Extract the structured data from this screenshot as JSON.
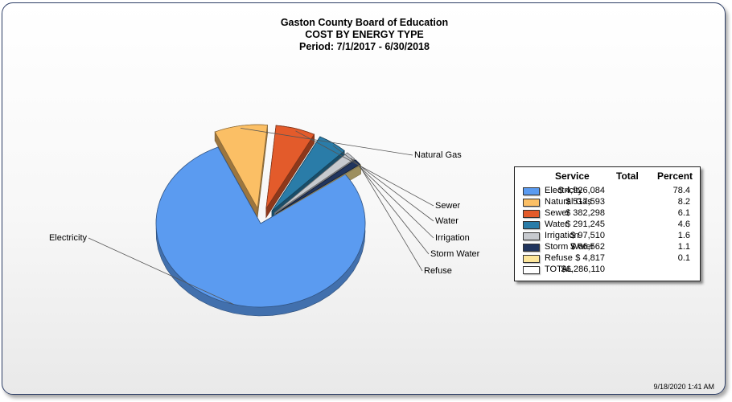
{
  "chart_data": {
    "type": "pie",
    "title": "Gaston County Board of Education",
    "subtitle": "COST BY ENERGY TYPE",
    "period": "Period: 7/1/2017 - 6/30/2018",
    "slices": [
      {
        "name": "Electricity",
        "total": "$ 4,926,084",
        "value": 78.4,
        "color": "#5b9bf0"
      },
      {
        "name": "Natural Gas",
        "total": "$ 517,593",
        "value": 8.2,
        "color": "#fbbf65"
      },
      {
        "name": "Sewer",
        "total": "$ 382,298",
        "value": 6.1,
        "color": "#e35b2b"
      },
      {
        "name": "Water",
        "total": "$ 291,245",
        "value": 4.6,
        "color": "#2a7ca8"
      },
      {
        "name": "Irrigation",
        "total": "$ 97,510",
        "value": 1.6,
        "color": "#c7cacf"
      },
      {
        "name": "Storm Water",
        "total": "$ 66,562",
        "value": 1.1,
        "color": "#21355e"
      },
      {
        "name": "Refuse",
        "total": "$ 4,817",
        "value": 0.1,
        "color": "#fde69a"
      }
    ],
    "legend": {
      "position": "right",
      "headers": {
        "service": "Service",
        "total": "Total",
        "percent": "Percent"
      },
      "total_row": {
        "name": "TOTAL",
        "total": "$6,286,110",
        "color": "#ffffff"
      }
    }
  },
  "footer": {
    "timestamp": "9/18/2020 1:41 AM"
  }
}
